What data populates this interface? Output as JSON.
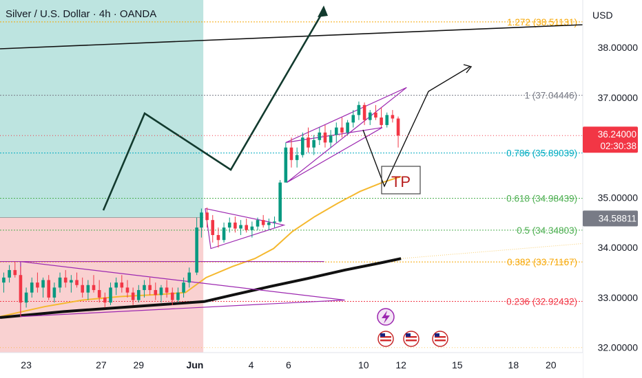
{
  "chart_data": {
    "type": "candlestick",
    "title": "Silver / U.S. Dollar · 4h · OANDA",
    "currency": "USD",
    "y_range": [
      31.9,
      38.95
    ],
    "y_ticks": [
      "38.00000",
      "37.00000",
      "35.00000",
      "34.00000",
      "33.00000",
      "32.00000"
    ],
    "y_tick_values": [
      38,
      37,
      35,
      34,
      33,
      32
    ],
    "x_range_days": [
      -10.4,
      20.7
    ],
    "x_ticks": [
      {
        "label": "23",
        "day": -9
      },
      {
        "label": "27",
        "day": -5
      },
      {
        "label": "29",
        "day": -3
      },
      {
        "label": "Jun",
        "day": 0
      },
      {
        "label": "4",
        "day": 3
      },
      {
        "label": "6",
        "day": 5
      },
      {
        "label": "10",
        "day": 9
      },
      {
        "label": "12",
        "day": 11
      },
      {
        "label": "15",
        "day": 14
      },
      {
        "label": "18",
        "day": 17
      },
      {
        "label": "20",
        "day": 19
      }
    ],
    "fib_levels": [
      {
        "label": "1.272 (38.51131)",
        "value": 38.51131,
        "color": "#f7a600"
      },
      {
        "label": "1 (37.04446)",
        "value": 37.04446,
        "color": "#787b86"
      },
      {
        "label": "0.786 (35.89039)",
        "value": 35.89039,
        "color": "#00acc1"
      },
      {
        "label": "0.618 (34.98439)",
        "value": 34.98439,
        "color": "#4caf50"
      },
      {
        "label": "0.5 (34.34803)",
        "value": 34.34803,
        "color": "#4caf50"
      },
      {
        "label": "0.382 (33.71167)",
        "value": 33.71167,
        "color": "#f7a600"
      },
      {
        "label": "0.236 (32.92432)",
        "value": 32.92432,
        "color": "#f23645"
      }
    ],
    "price_tags": [
      {
        "price": "36.24000",
        "countdown": "02:30:38",
        "value": 36.24,
        "color": "#f23645"
      },
      {
        "price": "34.58811",
        "value": 34.58811,
        "color": "#787b86"
      }
    ],
    "zones": [
      {
        "kind": "target",
        "day_from": -10.4,
        "day_to": 0.45,
        "value_from": 34.6,
        "value_to": 38.95,
        "color": "#b2dfdb"
      },
      {
        "kind": "stop",
        "day_from": -10.4,
        "day_to": 0.45,
        "value_from": 31.9,
        "value_to": 34.6,
        "color": "#f8c9c9"
      }
    ],
    "annotation_text": "TP",
    "candles": [
      {
        "day": -10.2,
        "o": 33.3,
        "h": 33.5,
        "l": 33.1,
        "c": 33.4
      },
      {
        "day": -9.9,
        "o": 33.4,
        "h": 33.65,
        "l": 33.3,
        "c": 33.55
      },
      {
        "day": -9.6,
        "o": 33.55,
        "h": 33.72,
        "l": 33.4,
        "c": 33.45
      },
      {
        "day": -9.3,
        "o": 33.45,
        "h": 33.62,
        "l": 32.62,
        "c": 32.9
      },
      {
        "day": -9.0,
        "o": 32.9,
        "h": 33.2,
        "l": 32.8,
        "c": 33.1
      },
      {
        "day": -8.7,
        "o": 33.1,
        "h": 33.4,
        "l": 33.0,
        "c": 33.3
      },
      {
        "day": -8.4,
        "o": 33.3,
        "h": 33.5,
        "l": 33.1,
        "c": 33.2
      },
      {
        "day": -8.1,
        "o": 33.2,
        "h": 33.4,
        "l": 33.0,
        "c": 33.35
      },
      {
        "day": -7.8,
        "o": 33.35,
        "h": 33.45,
        "l": 32.95,
        "c": 33.0
      },
      {
        "day": -7.5,
        "o": 33.0,
        "h": 33.3,
        "l": 32.9,
        "c": 33.2
      },
      {
        "day": -7.2,
        "o": 33.2,
        "h": 33.5,
        "l": 33.1,
        "c": 33.4
      },
      {
        "day": -6.9,
        "o": 33.4,
        "h": 33.55,
        "l": 33.2,
        "c": 33.3
      },
      {
        "day": -6.6,
        "o": 33.3,
        "h": 33.45,
        "l": 33.1,
        "c": 33.35
      },
      {
        "day": -6.3,
        "o": 33.35,
        "h": 33.5,
        "l": 33.2,
        "c": 33.25
      },
      {
        "day": -6.0,
        "o": 33.25,
        "h": 33.4,
        "l": 33.0,
        "c": 33.1
      },
      {
        "day": -5.7,
        "o": 33.1,
        "h": 33.35,
        "l": 32.95,
        "c": 33.25
      },
      {
        "day": -5.4,
        "o": 33.25,
        "h": 33.45,
        "l": 33.1,
        "c": 33.15
      },
      {
        "day": -5.1,
        "o": 33.15,
        "h": 33.35,
        "l": 32.9,
        "c": 33.0
      },
      {
        "day": -4.8,
        "o": 33.0,
        "h": 33.1,
        "l": 32.8,
        "c": 32.9
      },
      {
        "day": -4.5,
        "o": 32.9,
        "h": 33.3,
        "l": 32.85,
        "c": 33.2
      },
      {
        "day": -4.2,
        "o": 33.2,
        "h": 33.4,
        "l": 33.05,
        "c": 33.3
      },
      {
        "day": -3.9,
        "o": 33.3,
        "h": 33.45,
        "l": 33.1,
        "c": 33.2
      },
      {
        "day": -3.6,
        "o": 33.2,
        "h": 33.35,
        "l": 33.0,
        "c": 33.1
      },
      {
        "day": -3.3,
        "o": 33.1,
        "h": 33.2,
        "l": 32.85,
        "c": 32.95
      },
      {
        "day": -3.0,
        "o": 32.95,
        "h": 33.25,
        "l": 32.9,
        "c": 33.15
      },
      {
        "day": -2.7,
        "o": 33.15,
        "h": 33.35,
        "l": 33.0,
        "c": 33.25
      },
      {
        "day": -2.4,
        "o": 33.25,
        "h": 33.4,
        "l": 33.05,
        "c": 33.15
      },
      {
        "day": -2.1,
        "o": 33.15,
        "h": 33.3,
        "l": 32.95,
        "c": 33.05
      },
      {
        "day": -1.8,
        "o": 33.05,
        "h": 33.25,
        "l": 32.9,
        "c": 33.2
      },
      {
        "day": -1.5,
        "o": 33.2,
        "h": 33.35,
        "l": 33.0,
        "c": 33.1
      },
      {
        "day": -1.2,
        "o": 33.1,
        "h": 33.2,
        "l": 32.85,
        "c": 32.95
      },
      {
        "day": -0.9,
        "o": 32.95,
        "h": 33.2,
        "l": 32.9,
        "c": 33.1
      },
      {
        "day": -0.6,
        "o": 33.1,
        "h": 33.4,
        "l": 33.0,
        "c": 33.3
      },
      {
        "day": -0.3,
        "o": 33.3,
        "h": 33.6,
        "l": 33.2,
        "c": 33.5
      },
      {
        "day": 0.1,
        "o": 33.5,
        "h": 34.6,
        "l": 33.45,
        "c": 34.4
      },
      {
        "day": 0.35,
        "o": 34.4,
        "h": 34.78,
        "l": 34.2,
        "c": 34.7
      },
      {
        "day": 0.65,
        "o": 34.7,
        "h": 34.8,
        "l": 34.4,
        "c": 34.55
      },
      {
        "day": 0.95,
        "o": 34.55,
        "h": 34.65,
        "l": 34.1,
        "c": 34.25
      },
      {
        "day": 1.25,
        "o": 34.25,
        "h": 34.4,
        "l": 34.0,
        "c": 34.15
      },
      {
        "day": 1.55,
        "o": 34.15,
        "h": 34.5,
        "l": 34.1,
        "c": 34.4
      },
      {
        "day": 1.85,
        "o": 34.4,
        "h": 34.6,
        "l": 34.3,
        "c": 34.5
      },
      {
        "day": 2.15,
        "o": 34.5,
        "h": 34.62,
        "l": 34.3,
        "c": 34.38
      },
      {
        "day": 2.45,
        "o": 34.38,
        "h": 34.55,
        "l": 34.25,
        "c": 34.45
      },
      {
        "day": 2.75,
        "o": 34.45,
        "h": 34.58,
        "l": 34.3,
        "c": 34.35
      },
      {
        "day": 3.05,
        "o": 34.35,
        "h": 34.52,
        "l": 34.2,
        "c": 34.42
      },
      {
        "day": 3.35,
        "o": 34.42,
        "h": 34.6,
        "l": 34.35,
        "c": 34.55
      },
      {
        "day": 3.65,
        "o": 34.55,
        "h": 34.65,
        "l": 34.4,
        "c": 34.45
      },
      {
        "day": 3.95,
        "o": 34.45,
        "h": 34.58,
        "l": 34.35,
        "c": 34.5
      },
      {
        "day": 4.25,
        "o": 34.5,
        "h": 34.62,
        "l": 34.4,
        "c": 34.52
      },
      {
        "day": 4.55,
        "o": 34.52,
        "h": 35.35,
        "l": 34.5,
        "c": 35.3
      },
      {
        "day": 4.85,
        "o": 35.3,
        "h": 36.1,
        "l": 35.3,
        "c": 36.0
      },
      {
        "day": 5.15,
        "o": 36.0,
        "h": 36.2,
        "l": 35.6,
        "c": 35.75
      },
      {
        "day": 5.45,
        "o": 35.75,
        "h": 36.0,
        "l": 35.6,
        "c": 35.85
      },
      {
        "day": 5.75,
        "o": 35.85,
        "h": 36.3,
        "l": 35.8,
        "c": 36.2
      },
      {
        "day": 6.05,
        "o": 36.2,
        "h": 36.4,
        "l": 35.9,
        "c": 36.0
      },
      {
        "day": 6.35,
        "o": 36.0,
        "h": 36.25,
        "l": 35.85,
        "c": 36.15
      },
      {
        "day": 6.65,
        "o": 36.15,
        "h": 36.4,
        "l": 36.05,
        "c": 36.3
      },
      {
        "day": 6.95,
        "o": 36.3,
        "h": 36.45,
        "l": 36.0,
        "c": 36.1
      },
      {
        "day": 7.25,
        "o": 36.1,
        "h": 36.35,
        "l": 36.0,
        "c": 36.25
      },
      {
        "day": 7.55,
        "o": 36.25,
        "h": 36.5,
        "l": 36.1,
        "c": 36.4
      },
      {
        "day": 7.85,
        "o": 36.4,
        "h": 36.6,
        "l": 36.2,
        "c": 36.3
      },
      {
        "day": 8.15,
        "o": 36.3,
        "h": 36.55,
        "l": 36.25,
        "c": 36.5
      },
      {
        "day": 8.45,
        "o": 36.5,
        "h": 36.75,
        "l": 36.4,
        "c": 36.65
      },
      {
        "day": 8.75,
        "o": 36.65,
        "h": 36.92,
        "l": 36.55,
        "c": 36.85
      },
      {
        "day": 9.05,
        "o": 36.85,
        "h": 36.9,
        "l": 36.45,
        "c": 36.55
      },
      {
        "day": 9.35,
        "o": 36.55,
        "h": 36.75,
        "l": 36.45,
        "c": 36.7
      },
      {
        "day": 9.65,
        "o": 36.7,
        "h": 36.85,
        "l": 36.55,
        "c": 36.6
      },
      {
        "day": 9.95,
        "o": 36.6,
        "h": 36.8,
        "l": 36.4,
        "c": 36.45
      },
      {
        "day": 10.25,
        "o": 36.45,
        "h": 36.7,
        "l": 36.4,
        "c": 36.65
      },
      {
        "day": 10.55,
        "o": 36.65,
        "h": 36.75,
        "l": 36.5,
        "c": 36.58
      },
      {
        "day": 10.85,
        "o": 36.58,
        "h": 36.62,
        "l": 36.0,
        "c": 36.24
      }
    ]
  }
}
